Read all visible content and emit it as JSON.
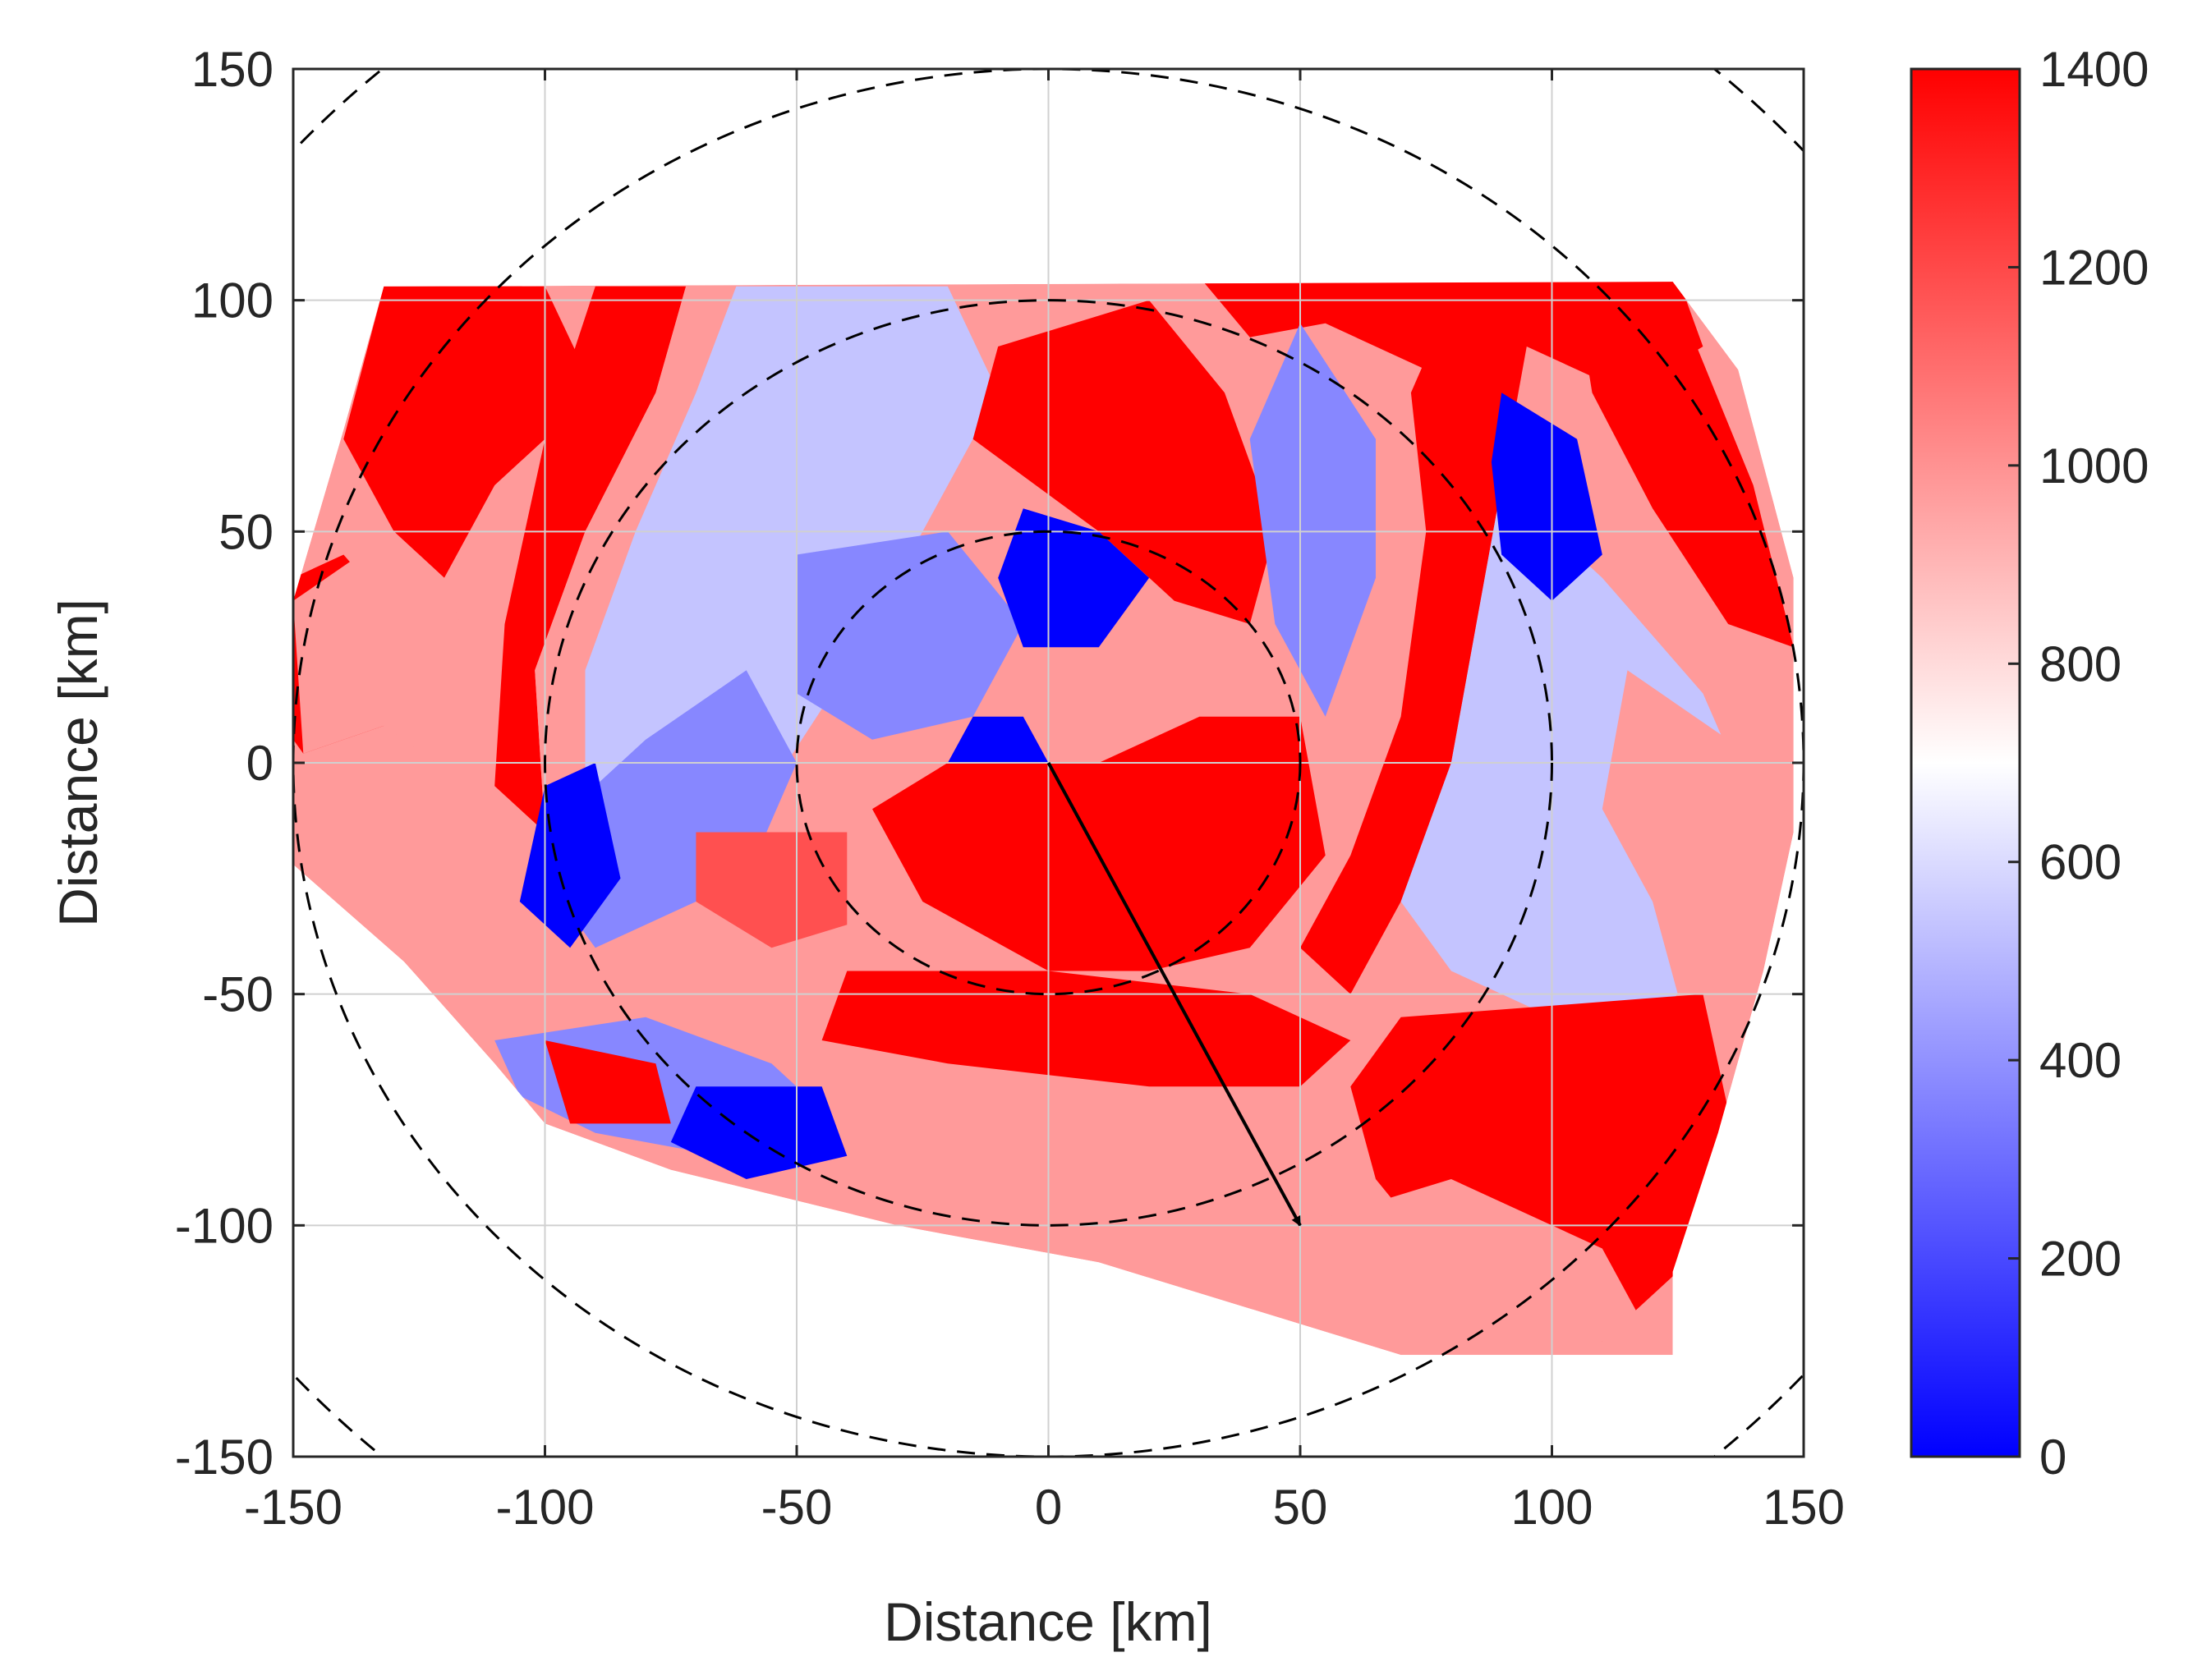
{
  "chart_data": {
    "type": "heatmap",
    "title": "",
    "xlabel": "Distance [km]",
    "ylabel": "Distance [km]",
    "xlim": [
      -150,
      150
    ],
    "ylim": [
      -150,
      150
    ],
    "xticks": [
      "-150",
      "-100",
      "-50",
      "0",
      "50",
      "100",
      "150"
    ],
    "yticks": [
      "150",
      "100",
      "50",
      "0",
      "-50",
      "-100",
      "-150"
    ],
    "grid": true,
    "colorbar": {
      "min": 0,
      "max": 1400,
      "ticks": [
        "1400",
        "1200",
        "1000",
        "800",
        "600",
        "400",
        "200",
        "0"
      ],
      "colormap": [
        "#0000ff",
        "#ffffff",
        "#ff0000"
      ],
      "levels": [
        "#0000ff",
        "#4a4aff",
        "#8787ff",
        "#c4c4ff",
        "#ffe3e3",
        "#ff9a9a",
        "#ff5050",
        "#ff0000"
      ]
    },
    "range_rings_km": [
      50,
      100,
      150,
      200
    ],
    "arrow": {
      "from": [
        0,
        0
      ],
      "to": [
        50,
        -100
      ]
    },
    "domain_outline_km": [
      [
        -132,
        103
      ],
      [
        124,
        104
      ],
      [
        137,
        85
      ],
      [
        148,
        40
      ],
      [
        148,
        -15
      ],
      [
        142,
        -45
      ],
      [
        133,
        -80
      ],
      [
        124,
        -110
      ],
      [
        124,
        -128
      ],
      [
        70,
        -128
      ],
      [
        40,
        -118
      ],
      [
        10,
        -108
      ],
      [
        -30,
        -100
      ],
      [
        -75,
        -88
      ],
      [
        -100,
        -78
      ],
      [
        -110,
        -65
      ],
      [
        -128,
        -43
      ],
      [
        -150,
        -22
      ],
      [
        -150,
        35
      ],
      [
        -140,
        72
      ]
    ],
    "regions": [
      {
        "name": "west-band",
        "value": 1350,
        "poly": [
          [
            -148,
            2
          ],
          [
            -132,
            8
          ],
          [
            -128,
            30
          ],
          [
            -140,
            45
          ],
          [
            -150,
            40
          ],
          [
            -150,
            5
          ]
        ]
      },
      {
        "name": "northwest-band",
        "value": 1350,
        "poly": [
          [
            -132,
            103
          ],
          [
            -100,
            103
          ],
          [
            -90,
            80
          ],
          [
            -110,
            60
          ],
          [
            -120,
            40
          ],
          [
            -130,
            50
          ],
          [
            -140,
            70
          ]
        ]
      },
      {
        "name": "northwest-pink",
        "value": 1000,
        "poly": [
          [
            -150,
            35
          ],
          [
            -130,
            50
          ],
          [
            -120,
            40
          ],
          [
            -112,
            15
          ],
          [
            -115,
            -5
          ],
          [
            -132,
            8
          ],
          [
            -148,
            2
          ]
        ]
      },
      {
        "name": "spiral-band-1",
        "value": 1350,
        "poly": [
          [
            -90,
            103
          ],
          [
            -72,
            103
          ],
          [
            -78,
            80
          ],
          [
            -92,
            50
          ],
          [
            -102,
            20
          ],
          [
            -100,
            -15
          ],
          [
            -110,
            -5
          ],
          [
            -108,
            30
          ],
          [
            -100,
            70
          ]
        ]
      },
      {
        "name": "spiral-band-1-fringe",
        "value": 1000,
        "poly": [
          [
            -72,
            103
          ],
          [
            -62,
            103
          ],
          [
            -70,
            80
          ],
          [
            -82,
            50
          ],
          [
            -92,
            20
          ],
          [
            -92,
            -10
          ],
          [
            -100,
            -15
          ],
          [
            -102,
            20
          ],
          [
            -92,
            50
          ],
          [
            -78,
            80
          ]
        ]
      },
      {
        "name": "west-light-blue",
        "value": 560,
        "poly": [
          [
            -62,
            103
          ],
          [
            -20,
            103
          ],
          [
            -10,
            80
          ],
          [
            -25,
            50
          ],
          [
            -40,
            20
          ],
          [
            -55,
            -5
          ],
          [
            -75,
            -20
          ],
          [
            -92,
            -10
          ],
          [
            -92,
            20
          ],
          [
            -82,
            50
          ],
          [
            -70,
            80
          ]
        ]
      },
      {
        "name": "west-mid-blue",
        "value": 350,
        "poly": [
          [
            -80,
            5
          ],
          [
            -60,
            20
          ],
          [
            -50,
            0
          ],
          [
            -60,
            -25
          ],
          [
            -90,
            -40
          ],
          [
            -100,
            -25
          ],
          [
            -95,
            -10
          ]
        ]
      },
      {
        "name": "west-dark-blue",
        "value": 100,
        "poly": [
          [
            -100,
            -5
          ],
          [
            -90,
            0
          ],
          [
            -85,
            -25
          ],
          [
            -95,
            -40
          ],
          [
            -105,
            -30
          ]
        ]
      },
      {
        "name": "inner-mid-blue",
        "value": 350,
        "poly": [
          [
            -50,
            45
          ],
          [
            -20,
            50
          ],
          [
            -5,
            30
          ],
          [
            -15,
            10
          ],
          [
            -35,
            5
          ],
          [
            -50,
            15
          ]
        ]
      },
      {
        "name": "inner-dark-blue",
        "value": 100,
        "poly": [
          [
            -5,
            55
          ],
          [
            10,
            50
          ],
          [
            20,
            40
          ],
          [
            10,
            25
          ],
          [
            -5,
            25
          ],
          [
            -10,
            40
          ]
        ]
      },
      {
        "name": "center-dark-blue",
        "value": 100,
        "poly": [
          [
            -15,
            10
          ],
          [
            -5,
            10
          ],
          [
            0,
            0
          ],
          [
            -10,
            -5
          ],
          [
            -20,
            0
          ]
        ]
      },
      {
        "name": "northeast-red-block",
        "value": 1350,
        "poly": [
          [
            -10,
            90
          ],
          [
            20,
            100
          ],
          [
            35,
            80
          ],
          [
            45,
            50
          ],
          [
            40,
            30
          ],
          [
            25,
            35
          ],
          [
            10,
            50
          ],
          [
            -15,
            70
          ]
        ]
      },
      {
        "name": "north-red-strip",
        "value": 1350,
        "poly": [
          [
            30,
            105
          ],
          [
            125,
            105
          ],
          [
            130,
            90
          ],
          [
            115,
            80
          ],
          [
            95,
            90
          ],
          [
            75,
            85
          ],
          [
            55,
            95
          ],
          [
            40,
            92
          ]
        ]
      },
      {
        "name": "east-mid-blue",
        "value": 350,
        "poly": [
          [
            50,
            95
          ],
          [
            65,
            70
          ],
          [
            65,
            40
          ],
          [
            55,
            10
          ],
          [
            45,
            30
          ],
          [
            40,
            70
          ]
        ]
      },
      {
        "name": "east-red-band",
        "value": 1350,
        "poly": [
          [
            80,
            100
          ],
          [
            95,
            90
          ],
          [
            90,
            60
          ],
          [
            85,
            30
          ],
          [
            80,
            0
          ],
          [
            70,
            -30
          ],
          [
            60,
            -50
          ],
          [
            50,
            -40
          ],
          [
            60,
            -20
          ],
          [
            70,
            10
          ],
          [
            75,
            50
          ],
          [
            72,
            80
          ]
        ]
      },
      {
        "name": "east-light-blue",
        "value": 560,
        "poly": [
          [
            90,
            60
          ],
          [
            110,
            40
          ],
          [
            130,
            15
          ],
          [
            140,
            -10
          ],
          [
            135,
            -40
          ],
          [
            120,
            -55
          ],
          [
            100,
            -55
          ],
          [
            80,
            -45
          ],
          [
            70,
            -30
          ],
          [
            80,
            0
          ],
          [
            85,
            30
          ]
        ]
      },
      {
        "name": "east-dark-blue",
        "value": 100,
        "poly": [
          [
            90,
            80
          ],
          [
            105,
            70
          ],
          [
            110,
            45
          ],
          [
            100,
            35
          ],
          [
            90,
            45
          ],
          [
            88,
            65
          ]
        ]
      },
      {
        "name": "far-east-red",
        "value": 1350,
        "poly": [
          [
            105,
            100
          ],
          [
            125,
            100
          ],
          [
            140,
            60
          ],
          [
            148,
            25
          ],
          [
            135,
            30
          ],
          [
            120,
            55
          ],
          [
            108,
            80
          ]
        ]
      },
      {
        "name": "far-east-pink",
        "value": 1000,
        "poly": [
          [
            115,
            20
          ],
          [
            135,
            5
          ],
          [
            145,
            -20
          ],
          [
            140,
            -45
          ],
          [
            125,
            -50
          ],
          [
            120,
            -30
          ],
          [
            110,
            -10
          ]
        ]
      },
      {
        "name": "center-red",
        "value": 1350,
        "poly": [
          [
            -20,
            0
          ],
          [
            10,
            0
          ],
          [
            30,
            10
          ],
          [
            50,
            10
          ],
          [
            55,
            -20
          ],
          [
            40,
            -40
          ],
          [
            20,
            -45
          ],
          [
            0,
            -45
          ],
          [
            -25,
            -30
          ],
          [
            -35,
            -10
          ]
        ]
      },
      {
        "name": "south-red-band",
        "value": 1350,
        "poly": [
          [
            -40,
            -45
          ],
          [
            0,
            -45
          ],
          [
            40,
            -50
          ],
          [
            60,
            -60
          ],
          [
            50,
            -70
          ],
          [
            20,
            -70
          ],
          [
            -20,
            -65
          ],
          [
            -45,
            -60
          ]
        ]
      },
      {
        "name": "south-blue",
        "value": 350,
        "poly": [
          [
            -110,
            -60
          ],
          [
            -80,
            -55
          ],
          [
            -55,
            -65
          ],
          [
            -45,
            -75
          ],
          [
            -65,
            -85
          ],
          [
            -90,
            -80
          ],
          [
            -105,
            -72
          ]
        ]
      },
      {
        "name": "south-dark-blue",
        "value": 100,
        "poly": [
          [
            -70,
            -70
          ],
          [
            -45,
            -70
          ],
          [
            -40,
            -85
          ],
          [
            -60,
            -90
          ],
          [
            -75,
            -82
          ]
        ]
      },
      {
        "name": "southwest-red",
        "value": 1350,
        "poly": [
          [
            -100,
            -60
          ],
          [
            -78,
            -65
          ],
          [
            -75,
            -78
          ],
          [
            -95,
            -78
          ]
        ]
      },
      {
        "name": "south-pink",
        "value": 900,
        "poly": [
          [
            -30,
            -80
          ],
          [
            30,
            -75
          ],
          [
            60,
            -90
          ],
          [
            50,
            -105
          ],
          [
            0,
            -105
          ],
          [
            -40,
            -100
          ]
        ]
      },
      {
        "name": "southeast-red",
        "value": 1350,
        "poly": [
          [
            70,
            -55
          ],
          [
            130,
            -50
          ],
          [
            135,
            -75
          ],
          [
            125,
            -110
          ],
          [
            110,
            -125
          ],
          [
            80,
            -110
          ],
          [
            65,
            -90
          ],
          [
            60,
            -70
          ]
        ]
      },
      {
        "name": "southeast-pink",
        "value": 1000,
        "poly": [
          [
            50,
            -100
          ],
          [
            80,
            -90
          ],
          [
            110,
            -105
          ],
          [
            120,
            -125
          ],
          [
            70,
            -125
          ],
          [
            40,
            -115
          ]
        ]
      },
      {
        "name": "southwest-mid-red",
        "value": 1200,
        "poly": [
          [
            -70,
            -15
          ],
          [
            -40,
            -15
          ],
          [
            -40,
            -35
          ],
          [
            -55,
            -40
          ],
          [
            -70,
            -30
          ]
        ]
      }
    ]
  }
}
